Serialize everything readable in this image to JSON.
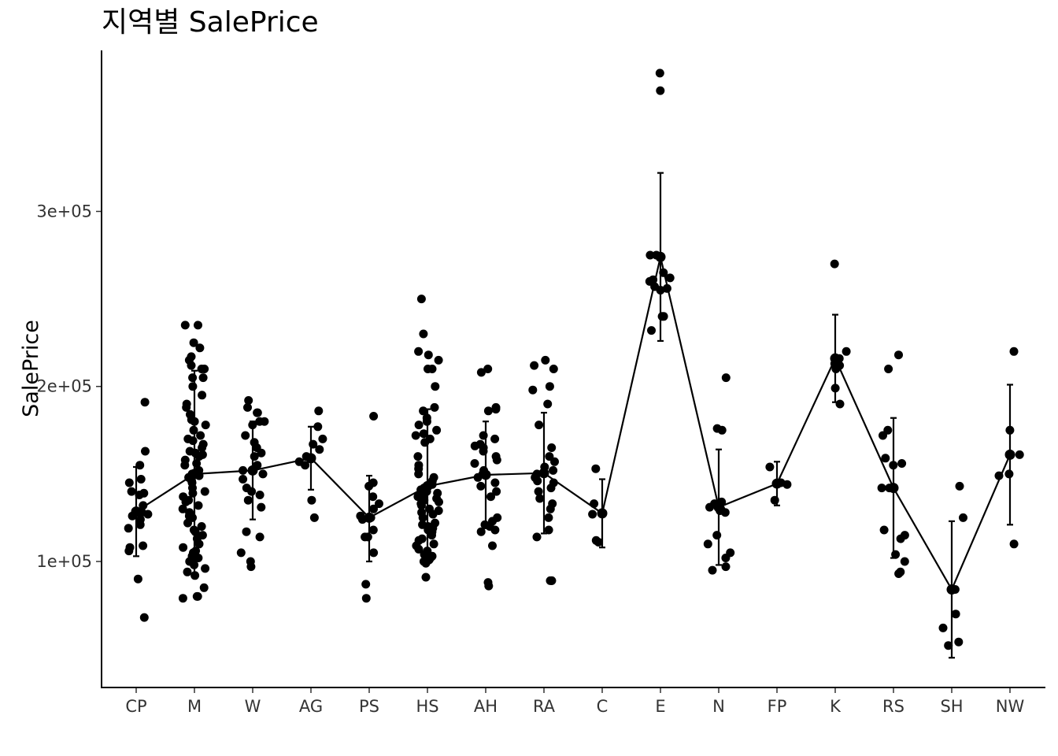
{
  "chart_data": {
    "type": "scatter",
    "title": "지역별 SalePrice",
    "xlabel": "",
    "ylabel": "SalePrice",
    "ylim": [
      28000,
      392000
    ],
    "yticks": [
      100000,
      200000,
      300000
    ],
    "ytick_labels": [
      "1e+05",
      "2e+05",
      "3e+05"
    ],
    "categories": [
      "CP",
      "M",
      "W",
      "AG",
      "PS",
      "HS",
      "AH",
      "RA",
      "C",
      "E",
      "N",
      "FP",
      "K",
      "RS",
      "SH",
      "NW"
    ],
    "colors": {
      "points": "#000000",
      "line": "#000000",
      "axis": "#000000"
    },
    "summary": {
      "mean": [
        128500,
        150000,
        152000,
        159000,
        125000,
        143000,
        149500,
        150500,
        127500,
        274000,
        131000,
        144500,
        216000,
        142000,
        84000,
        161000
      ],
      "upper": [
        154000,
        209000,
        180000,
        177000,
        149000,
        187000,
        180000,
        185000,
        147000,
        322000,
        164000,
        157000,
        241000,
        182000,
        123000,
        201000
      ],
      "lower": [
        103000,
        91000,
        124000,
        141000,
        100000,
        99000,
        119000,
        116000,
        108000,
        226000,
        98000,
        132000,
        191000,
        102000,
        45000,
        121000
      ]
    },
    "points": [
      [
        155000,
        140000,
        138000,
        127000,
        124000,
        121000,
        119000,
        163000,
        147000,
        139000,
        128000,
        126000,
        132000,
        106000,
        90000,
        108000,
        145000,
        109000,
        191000,
        68000
      ],
      [
        235000,
        225000,
        222000,
        217000,
        215000,
        212000,
        210000,
        205000,
        205000,
        200000,
        195000,
        190000,
        188000,
        184000,
        181000,
        180000,
        178000,
        175000,
        172000,
        170000,
        169000,
        167000,
        165000,
        163000,
        162000,
        161000,
        160000,
        158000,
        156000,
        155000,
        152000,
        150000,
        149000,
        148000,
        146000,
        145000,
        142000,
        140000,
        139000,
        137000,
        135000,
        134000,
        132000,
        130000,
        128000,
        126000,
        125000,
        122000,
        120000,
        118000,
        117000,
        115000,
        113000,
        110000,
        108000,
        106000,
        105000,
        104000,
        102000,
        100000,
        98000,
        96000,
        94000,
        92000,
        85000,
        80000,
        79000,
        80000,
        235000,
        103000,
        210000
      ],
      [
        185000,
        188000,
        180000,
        180000,
        178000,
        172000,
        168000,
        165000,
        162000,
        160000,
        155000,
        152000,
        150000,
        147000,
        142000,
        140000,
        138000,
        135000,
        131000,
        117000,
        114000,
        100000,
        97000,
        105000,
        192000,
        185000
      ],
      [
        186000,
        177000,
        170000,
        167000,
        164000,
        160000,
        157000,
        155000,
        135000,
        125000
      ],
      [
        183000,
        145000,
        143000,
        137000,
        133000,
        130000,
        126000,
        125000,
        124000,
        118000,
        114000,
        114000,
        105000,
        87000,
        79000
      ],
      [
        250000,
        230000,
        220000,
        218000,
        215000,
        210000,
        210000,
        200000,
        188000,
        186000,
        182000,
        180000,
        178000,
        175000,
        173000,
        172000,
        170000,
        168000,
        160000,
        155000,
        153000,
        150000,
        148000,
        146000,
        144000,
        142000,
        141000,
        140000,
        139000,
        138000,
        137000,
        136000,
        135000,
        134000,
        133000,
        132000,
        130000,
        129000,
        128000,
        127000,
        125000,
        122000,
        121000,
        120000,
        119000,
        118000,
        117000,
        115000,
        113000,
        112000,
        110000,
        109000,
        107000,
        106000,
        105000,
        104000,
        103000,
        102000,
        101000,
        100000,
        99000,
        91000
      ],
      [
        210000,
        208000,
        188000,
        187000,
        186000,
        172000,
        170000,
        167000,
        166000,
        165000,
        163000,
        160000,
        158000,
        156000,
        152000,
        150000,
        148000,
        145000,
        143000,
        140000,
        137000,
        125000,
        123000,
        121000,
        120000,
        118000,
        117000,
        109000,
        88000,
        86000
      ],
      [
        215000,
        212000,
        210000,
        200000,
        198000,
        190000,
        178000,
        165000,
        160000,
        157000,
        154000,
        152000,
        150000,
        148000,
        146000,
        145000,
        142000,
        140000,
        136000,
        133000,
        130000,
        125000,
        118000,
        114000,
        89000,
        89000,
        89000
      ],
      [
        153000,
        133000,
        127000,
        112000,
        111000
      ],
      [
        379000,
        369000,
        275000,
        275000,
        265000,
        262000,
        261000,
        260000,
        257000,
        256000,
        255000,
        240000,
        240000,
        232000
      ],
      [
        205000,
        176000,
        175000,
        134000,
        133000,
        131000,
        130000,
        129000,
        128000,
        115000,
        110000,
        105000,
        102000,
        97000,
        95000
      ],
      [
        154000,
        145000,
        144000,
        135000
      ],
      [
        270000,
        220000,
        216000,
        213000,
        212000,
        210000,
        199000,
        190000
      ],
      [
        218000,
        210000,
        175000,
        172000,
        159000,
        156000,
        155000,
        142000,
        142000,
        118000,
        115000,
        113000,
        104000,
        100000,
        94000,
        93000
      ],
      [
        143000,
        125000,
        84000,
        70000,
        62000,
        54000,
        52000
      ],
      [
        220000,
        175000,
        161000,
        150000,
        149000,
        110000
      ]
    ]
  }
}
